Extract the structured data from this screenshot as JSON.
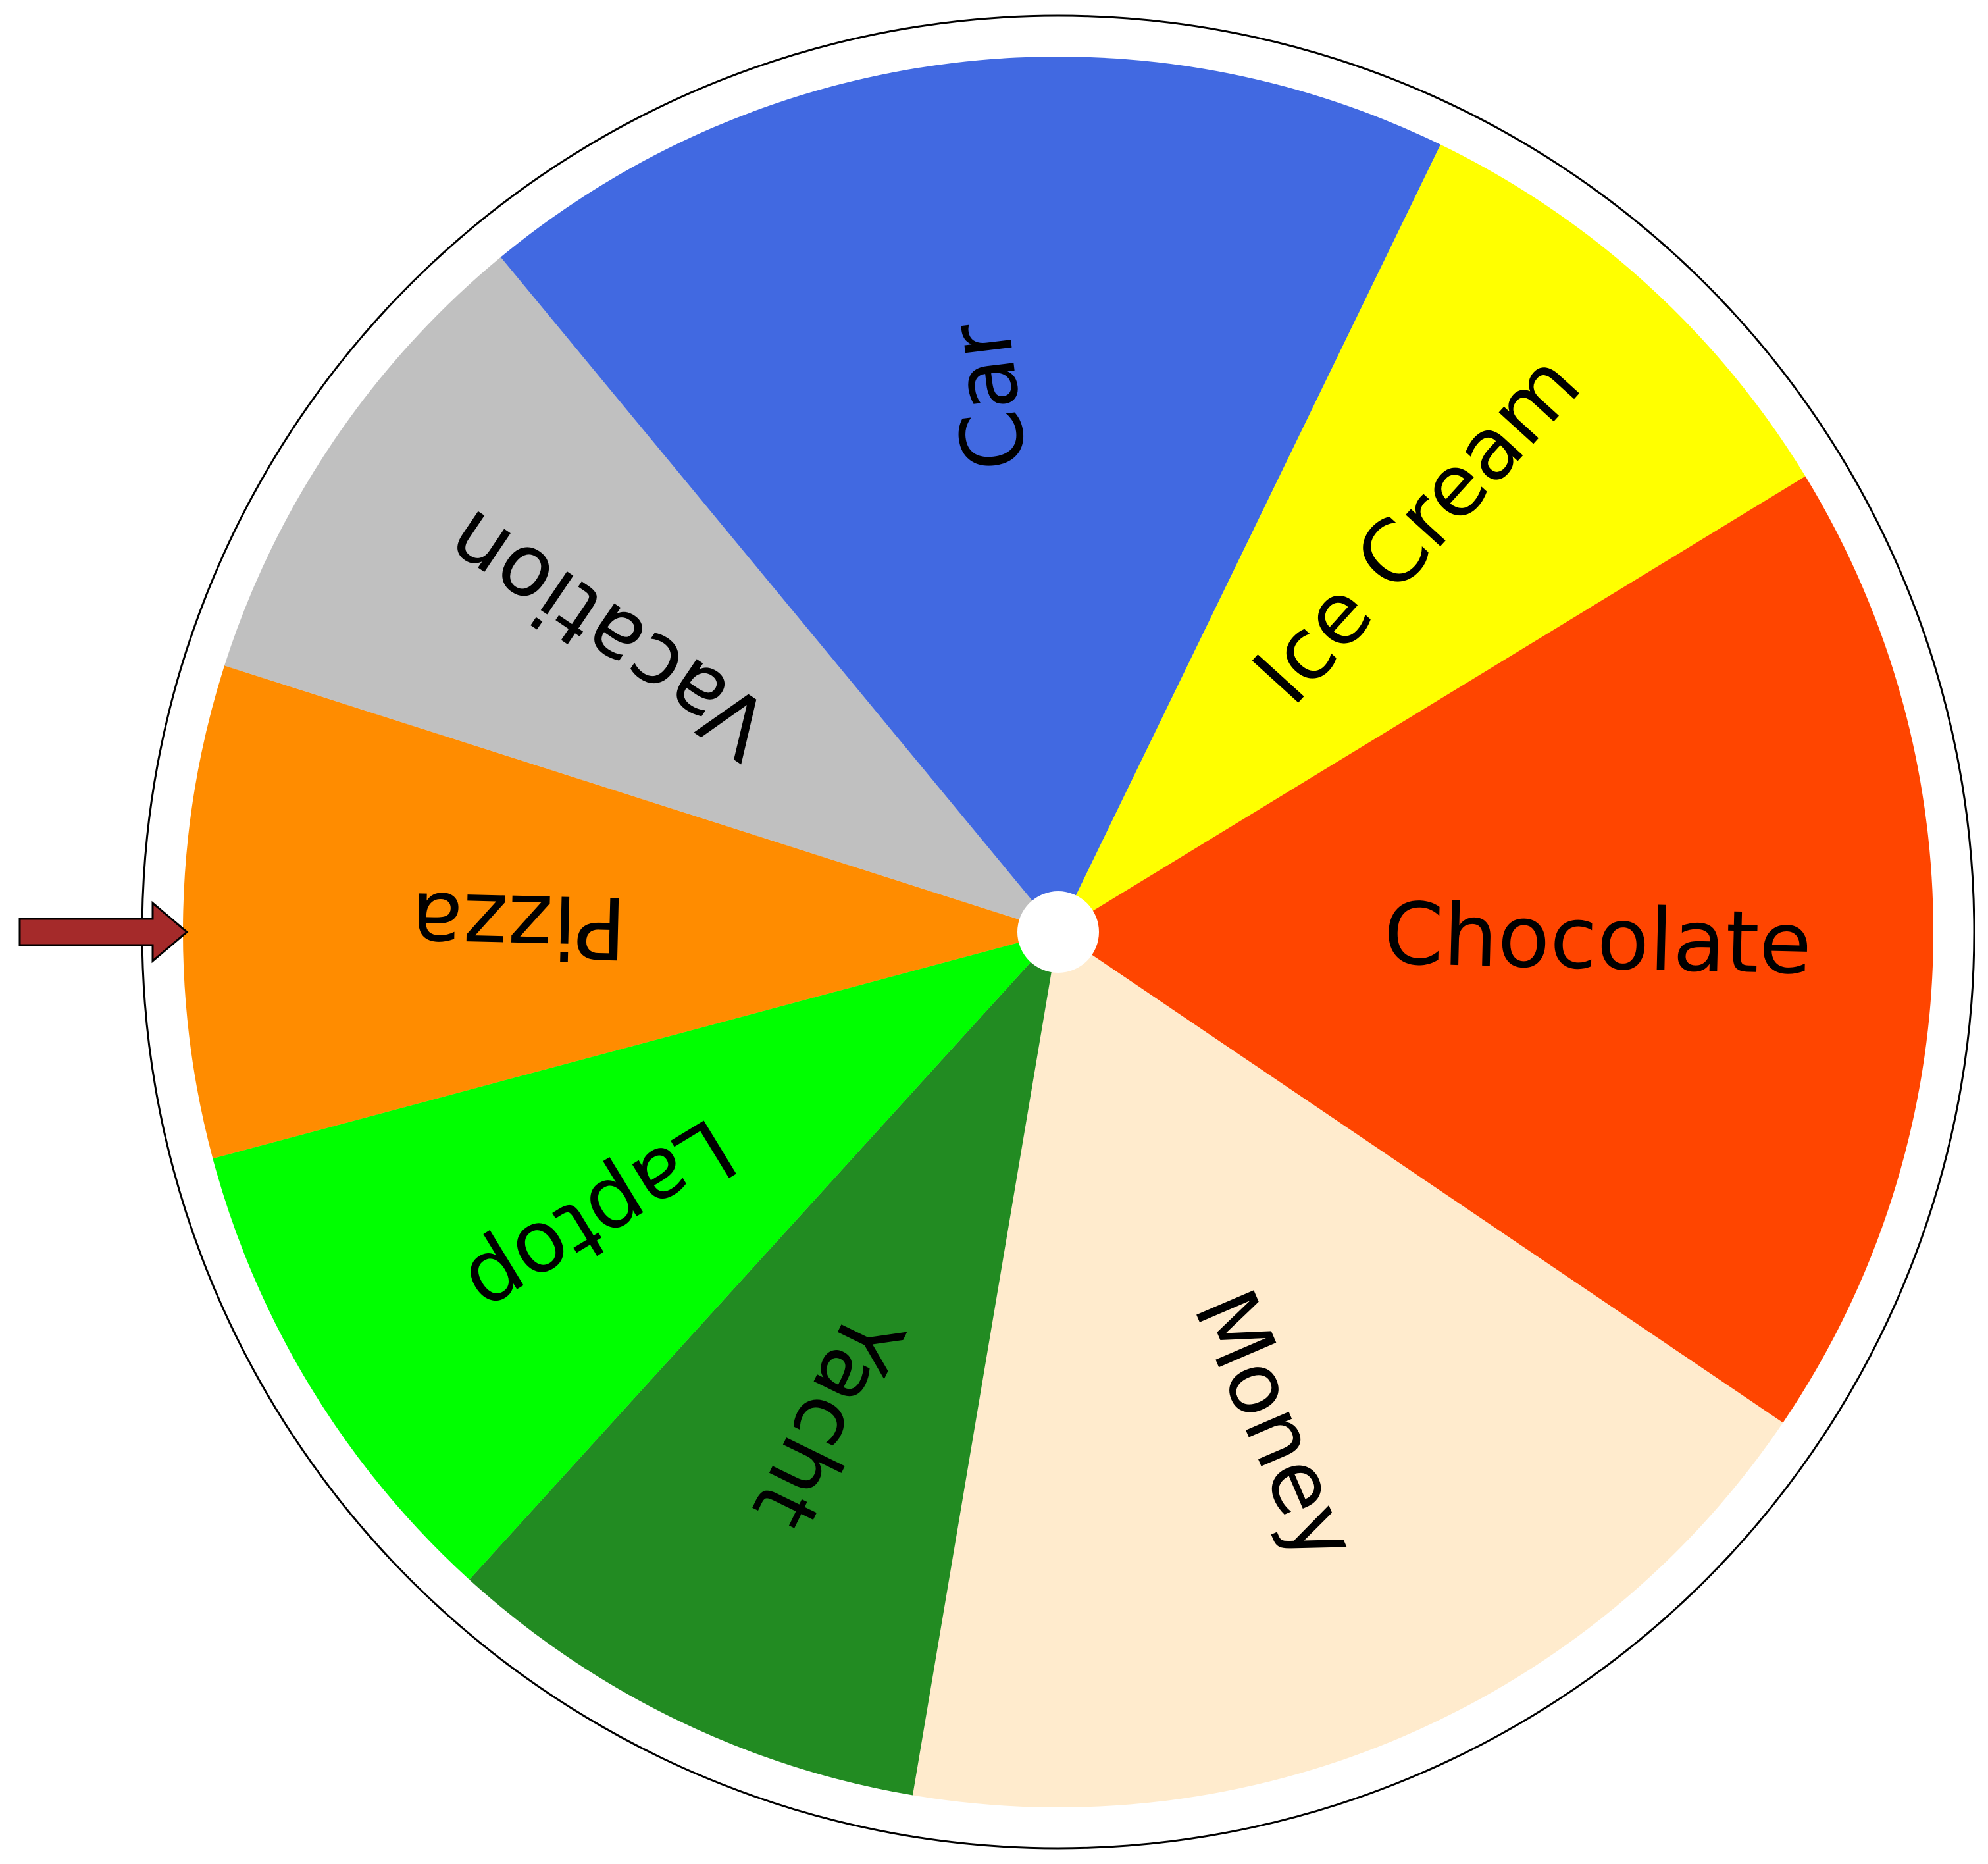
{
  "wheel": {
    "start_angle_deg": 165,
    "segments": [
      {
        "label": "Pizza",
        "color": "#ff8c00",
        "share": 0.0833
      },
      {
        "label": "Vacation",
        "color": "#c0c0c0",
        "share": 0.0833
      },
      {
        "label": "Car",
        "color": "#4169e1",
        "share": 0.1667
      },
      {
        "label": "Ice Cream",
        "color": "#ffff00",
        "share": 0.0833
      },
      {
        "label": "Chocolate",
        "color": "#ff4500",
        "share": 0.1667
      },
      {
        "label": "Money",
        "color": "#ffebcd",
        "share": 0.1667
      },
      {
        "label": "Yacht",
        "color": "#228b22",
        "share": 0.0833
      },
      {
        "label": "Laptop",
        "color": "#00ff00",
        "share": 0.0833
      }
    ],
    "pointer": {
      "icon": "arrow-right-icon",
      "color": "#a52a2a",
      "points_to": "Pizza"
    },
    "hub_color": "#ffffff",
    "rim_color": "#ffffff",
    "outline_color": "#000000"
  }
}
